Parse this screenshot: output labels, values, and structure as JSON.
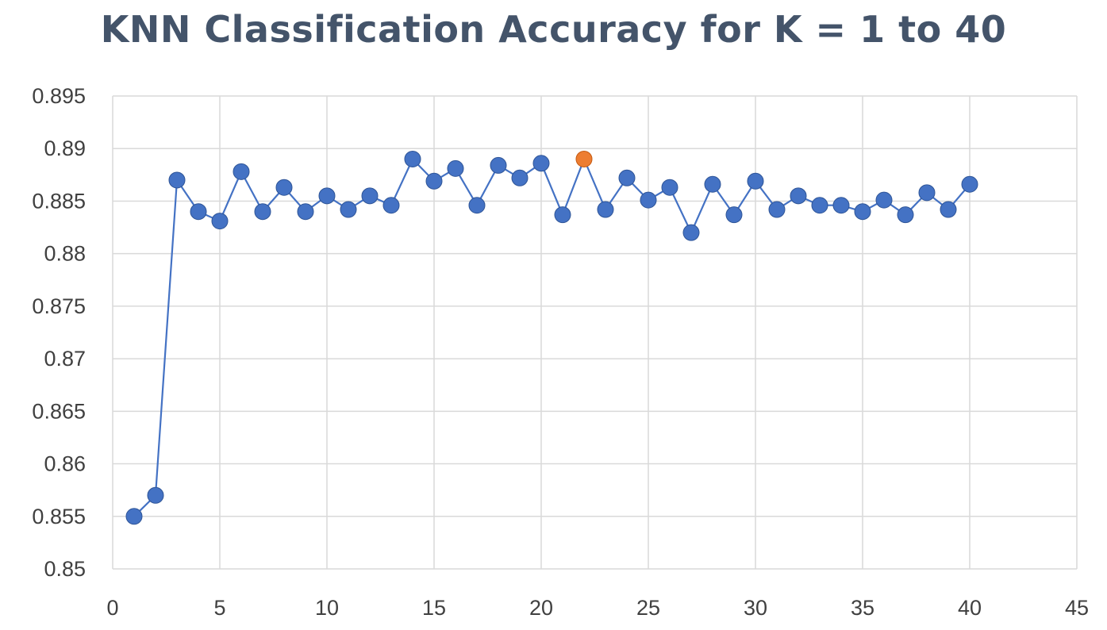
{
  "chart_data": {
    "type": "scatter",
    "title": "KNN Classification Accuracy for K = 1 to 40",
    "xlabel": "",
    "ylabel": "",
    "xlim": [
      0,
      45
    ],
    "ylim": [
      0.85,
      0.895
    ],
    "x_ticks": [
      "0",
      "5",
      "10",
      "15",
      "20",
      "25",
      "30",
      "35",
      "40",
      "45"
    ],
    "y_ticks": [
      "0.85",
      "0.855",
      "0.86",
      "0.865",
      "0.87",
      "0.875",
      "0.88",
      "0.885",
      "0.89",
      "0.895"
    ],
    "grid": true,
    "legend": "none",
    "line_connected": true,
    "series": [
      {
        "color": "#4472c4",
        "x": [
          1,
          2,
          3,
          4,
          5,
          6,
          7,
          8,
          9,
          10,
          11,
          12,
          13,
          14,
          15,
          16,
          17,
          18,
          19,
          20,
          21,
          22,
          23,
          24,
          25,
          26,
          27,
          28,
          29,
          30,
          31,
          32,
          33,
          34,
          35,
          36,
          37,
          38,
          39,
          40
        ],
        "y": [
          0.855,
          0.857,
          0.887,
          0.884,
          0.8831,
          0.8878,
          0.884,
          0.8863,
          0.884,
          0.8855,
          0.8842,
          0.8855,
          0.8846,
          0.889,
          0.8869,
          0.8881,
          0.8846,
          0.8884,
          0.8872,
          0.8886,
          0.8837,
          0.889,
          0.8842,
          0.8872,
          0.8851,
          0.8863,
          0.882,
          0.8866,
          0.8837,
          0.8869,
          0.8842,
          0.8855,
          0.8846,
          0.8846,
          0.884,
          0.8851,
          0.8837,
          0.8858,
          0.8842,
          0.8866
        ]
      }
    ],
    "highlight": {
      "x": 22,
      "y": 0.889,
      "color": "#ed7d31"
    }
  }
}
